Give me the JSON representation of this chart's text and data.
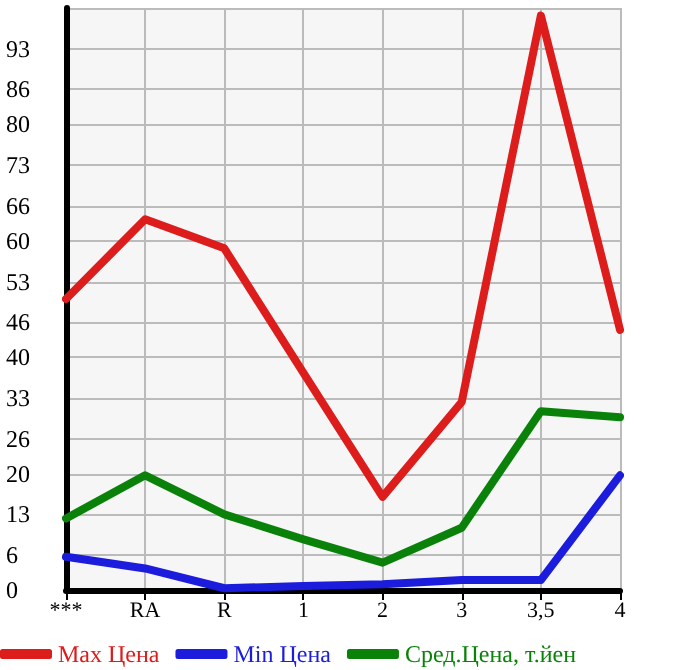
{
  "chart_data": {
    "type": "line",
    "categories": [
      "***",
      "RA",
      "R",
      "1",
      "2",
      "3",
      "3,5",
      "4"
    ],
    "series": [
      {
        "name": "Max Цена",
        "color": "#dd1c1c",
        "values": [
          50,
          63.7,
          58.7,
          37.3,
          16,
          32.3,
          98.7,
          44.7
        ]
      },
      {
        "name": "Min Цена",
        "color": "#1c1cdd",
        "values": [
          5.7,
          3.7,
          0.3,
          0.7,
          1,
          1.7,
          1.7,
          19.7
        ]
      },
      {
        "name": "Сред.Цена, т.йен",
        "color": "#0a820a",
        "values": [
          12.3,
          19.7,
          13,
          8.7,
          4.7,
          10.7,
          30.7,
          29.7
        ]
      }
    ],
    "ylim": [
      0,
      100
    ],
    "yticks": [
      0,
      6,
      13,
      20,
      26,
      33,
      40,
      46,
      53,
      60,
      66,
      73,
      80,
      86,
      93,
      {
        "value": 100,
        "label": null
      }
    ],
    "grid": true,
    "legend": "bottom",
    "marker": "none",
    "line_style": "solid"
  }
}
